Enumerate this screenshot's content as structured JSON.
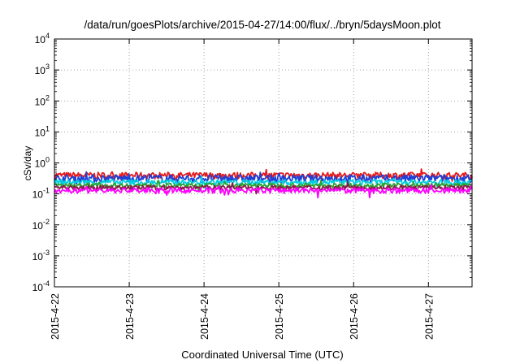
{
  "chart_data": {
    "type": "line",
    "title": "/data/run/goesPlots/archive/2015-04-27/14:00/flux/../bryn/5daysMoon.plot",
    "xlabel": "Coordinated Universal Time (UTC)",
    "ylabel": "cSv/day",
    "yscale": "log",
    "ylim": [
      0.0001,
      10000
    ],
    "xlim": [
      "2015-04-22",
      "2015-04-27 14:00"
    ],
    "grid": true,
    "x_ticks": [
      "2015-4-22",
      "2015-4-23",
      "2015-4-24",
      "2015-4-25",
      "2015-4-26",
      "2015-4-27"
    ],
    "y_ticks": [
      {
        "base": "10",
        "exp": "-4"
      },
      {
        "base": "10",
        "exp": "-3"
      },
      {
        "base": "10",
        "exp": "-2"
      },
      {
        "base": "10",
        "exp": "-1"
      },
      {
        "base": "10",
        "exp": "0"
      },
      {
        "base": "10",
        "exp": "1"
      },
      {
        "base": "10",
        "exp": "2"
      },
      {
        "base": "10",
        "exp": "3"
      },
      {
        "base": "10",
        "exp": "4"
      }
    ],
    "series": [
      {
        "color": "#e41a1c",
        "level": 0.4,
        "noise": 0.06
      },
      {
        "color": "#1f3fd6",
        "level": 0.32,
        "noise": 0.07
      },
      {
        "color": "#00d0e0",
        "level": 0.24,
        "noise": 0.05
      },
      {
        "color": "#2ca02c",
        "level": 0.19,
        "noise": 0.04
      },
      {
        "color": "#8b1a4a",
        "level": 0.16,
        "noise": 0.04
      },
      {
        "color": "#ff00ff",
        "level": 0.13,
        "noise": 0.05
      }
    ]
  }
}
